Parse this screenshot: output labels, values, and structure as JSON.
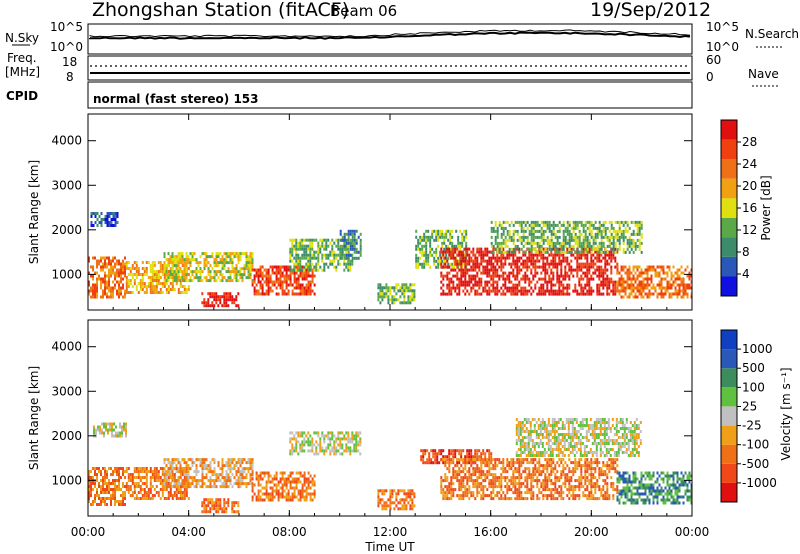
{
  "header": {
    "station": "Zhongshan Station (fitACF)",
    "beam": "Beam 06",
    "date": "19/Sep/2012"
  },
  "sky_panel": {
    "left_label": "N.Sky",
    "right_label": "N.Search",
    "left_ticks": [
      "10^5",
      "10^0"
    ],
    "right_ticks": [
      "10^5",
      "10^0"
    ]
  },
  "freq_panel": {
    "left_label_top": "Freq.",
    "left_label_bottom": "[MHz]",
    "right_label": "Nave",
    "left_ticks": [
      "18",
      "8"
    ],
    "right_ticks": [
      "60",
      "0"
    ]
  },
  "cpid": {
    "label": "CPID",
    "mode": "normal (fast stereo) 153"
  },
  "x_axis": {
    "label": "Time UT",
    "ticks": [
      "00:00",
      "04:00",
      "08:00",
      "12:00",
      "16:00",
      "20:00",
      "00:00"
    ],
    "range_hours": [
      0,
      24
    ]
  },
  "power_panel": {
    "ylabel": "Slant Range [km]",
    "yticks": [
      1000,
      2000,
      3000,
      4000
    ],
    "ylim": [
      200,
      4600
    ],
    "colorbar_label": "Power [dB]",
    "colorbar_ticks": [
      "4",
      "8",
      "12",
      "16",
      "20",
      "24",
      "28"
    ]
  },
  "velocity_panel": {
    "ylabel": "Slant Range [km]",
    "yticks": [
      1000,
      2000,
      3000,
      4000
    ],
    "ylim": [
      200,
      4600
    ],
    "colorbar_label": "Velocity [m s⁻¹]",
    "colorbar_ticks": [
      "-1000",
      "-500",
      "-100",
      "-25",
      "25",
      "100",
      "500",
      "1000"
    ]
  },
  "colors": {
    "power_scale": [
      "#1010e0",
      "#2a58b8",
      "#3c8c6c",
      "#5aa848",
      "#e0e010",
      "#f0a010",
      "#f07018",
      "#f04010",
      "#e01010"
    ],
    "velocity_scale": [
      "#e01010",
      "#f04818",
      "#f07018",
      "#f0a018",
      "#c0c0c0",
      "#60c040",
      "#3c8c5c",
      "#2a58b8",
      "#1040c0"
    ]
  },
  "chart_data": [
    {
      "type": "heatmap",
      "title": "",
      "xlabel": "Time UT",
      "ylabel": "Slant Range [km]",
      "xlim": [
        0,
        24
      ],
      "ylim": [
        200,
        4600
      ],
      "colorbar": "Power [dB]",
      "regions": [
        {
          "t0": 0.0,
          "t1": 1.5,
          "r0": 400,
          "r1": 1400,
          "level": 6
        },
        {
          "t0": 1.5,
          "t1": 4.0,
          "r0": 500,
          "r1": 1300,
          "level": 5
        },
        {
          "t0": 3.0,
          "t1": 6.5,
          "r0": 800,
          "r1": 1500,
          "level": 4
        },
        {
          "t0": 4.5,
          "t1": 6.0,
          "r0": 250,
          "r1": 600,
          "level": 8
        },
        {
          "t0": 6.5,
          "t1": 9.0,
          "r0": 500,
          "r1": 1200,
          "level": 7
        },
        {
          "t0": 8.0,
          "t1": 10.5,
          "r0": 1000,
          "r1": 1800,
          "level": 3
        },
        {
          "t0": 10.0,
          "t1": 10.8,
          "r0": 1300,
          "r1": 2000,
          "level": 2
        },
        {
          "t0": 11.5,
          "t1": 13.0,
          "r0": 300,
          "r1": 800,
          "level": 3
        },
        {
          "t0": 13.0,
          "t1": 15.0,
          "r0": 1100,
          "r1": 2000,
          "level": 3
        },
        {
          "t0": 14.0,
          "t1": 21.0,
          "r0": 500,
          "r1": 1600,
          "level": 8
        },
        {
          "t0": 16.0,
          "t1": 22.0,
          "r0": 1400,
          "r1": 2200,
          "level": 3
        },
        {
          "t0": 21.0,
          "t1": 24.0,
          "r0": 400,
          "r1": 1200,
          "level": 6
        },
        {
          "t0": 0.1,
          "t1": 1.2,
          "r0": 2000,
          "r1": 2400,
          "level": 1
        }
      ]
    },
    {
      "type": "heatmap",
      "title": "",
      "xlabel": "Time UT",
      "ylabel": "Slant Range [km]",
      "xlim": [
        0,
        24
      ],
      "ylim": [
        200,
        4600
      ],
      "colorbar": "Velocity [m s⁻¹]",
      "regions": [
        {
          "t0": 0.0,
          "t1": 1.5,
          "r0": 400,
          "r1": 1300,
          "level": 2
        },
        {
          "t0": 1.5,
          "t1": 4.0,
          "r0": 500,
          "r1": 1300,
          "level": 2
        },
        {
          "t0": 3.0,
          "t1": 6.5,
          "r0": 800,
          "r1": 1500,
          "level": 3
        },
        {
          "t0": 4.5,
          "t1": 6.0,
          "r0": 250,
          "r1": 600,
          "level": 2
        },
        {
          "t0": 6.5,
          "t1": 9.0,
          "r0": 500,
          "r1": 1200,
          "level": 2
        },
        {
          "t0": 8.0,
          "t1": 10.8,
          "r0": 1500,
          "r1": 2100,
          "level": 4
        },
        {
          "t0": 0.2,
          "t1": 1.5,
          "r0": 1900,
          "r1": 2300,
          "level": 4
        },
        {
          "t0": 11.5,
          "t1": 13.0,
          "r0": 300,
          "r1": 800,
          "level": 2
        },
        {
          "t0": 13.2,
          "t1": 16.0,
          "r0": 1300,
          "r1": 1700,
          "level": 1
        },
        {
          "t0": 14.0,
          "t1": 21.0,
          "r0": 500,
          "r1": 1500,
          "level": 2
        },
        {
          "t0": 17.0,
          "t1": 22.0,
          "r0": 1500,
          "r1": 2400,
          "level": 4
        },
        {
          "t0": 21.0,
          "t1": 24.0,
          "r0": 400,
          "r1": 1200,
          "level": 6
        }
      ]
    }
  ]
}
